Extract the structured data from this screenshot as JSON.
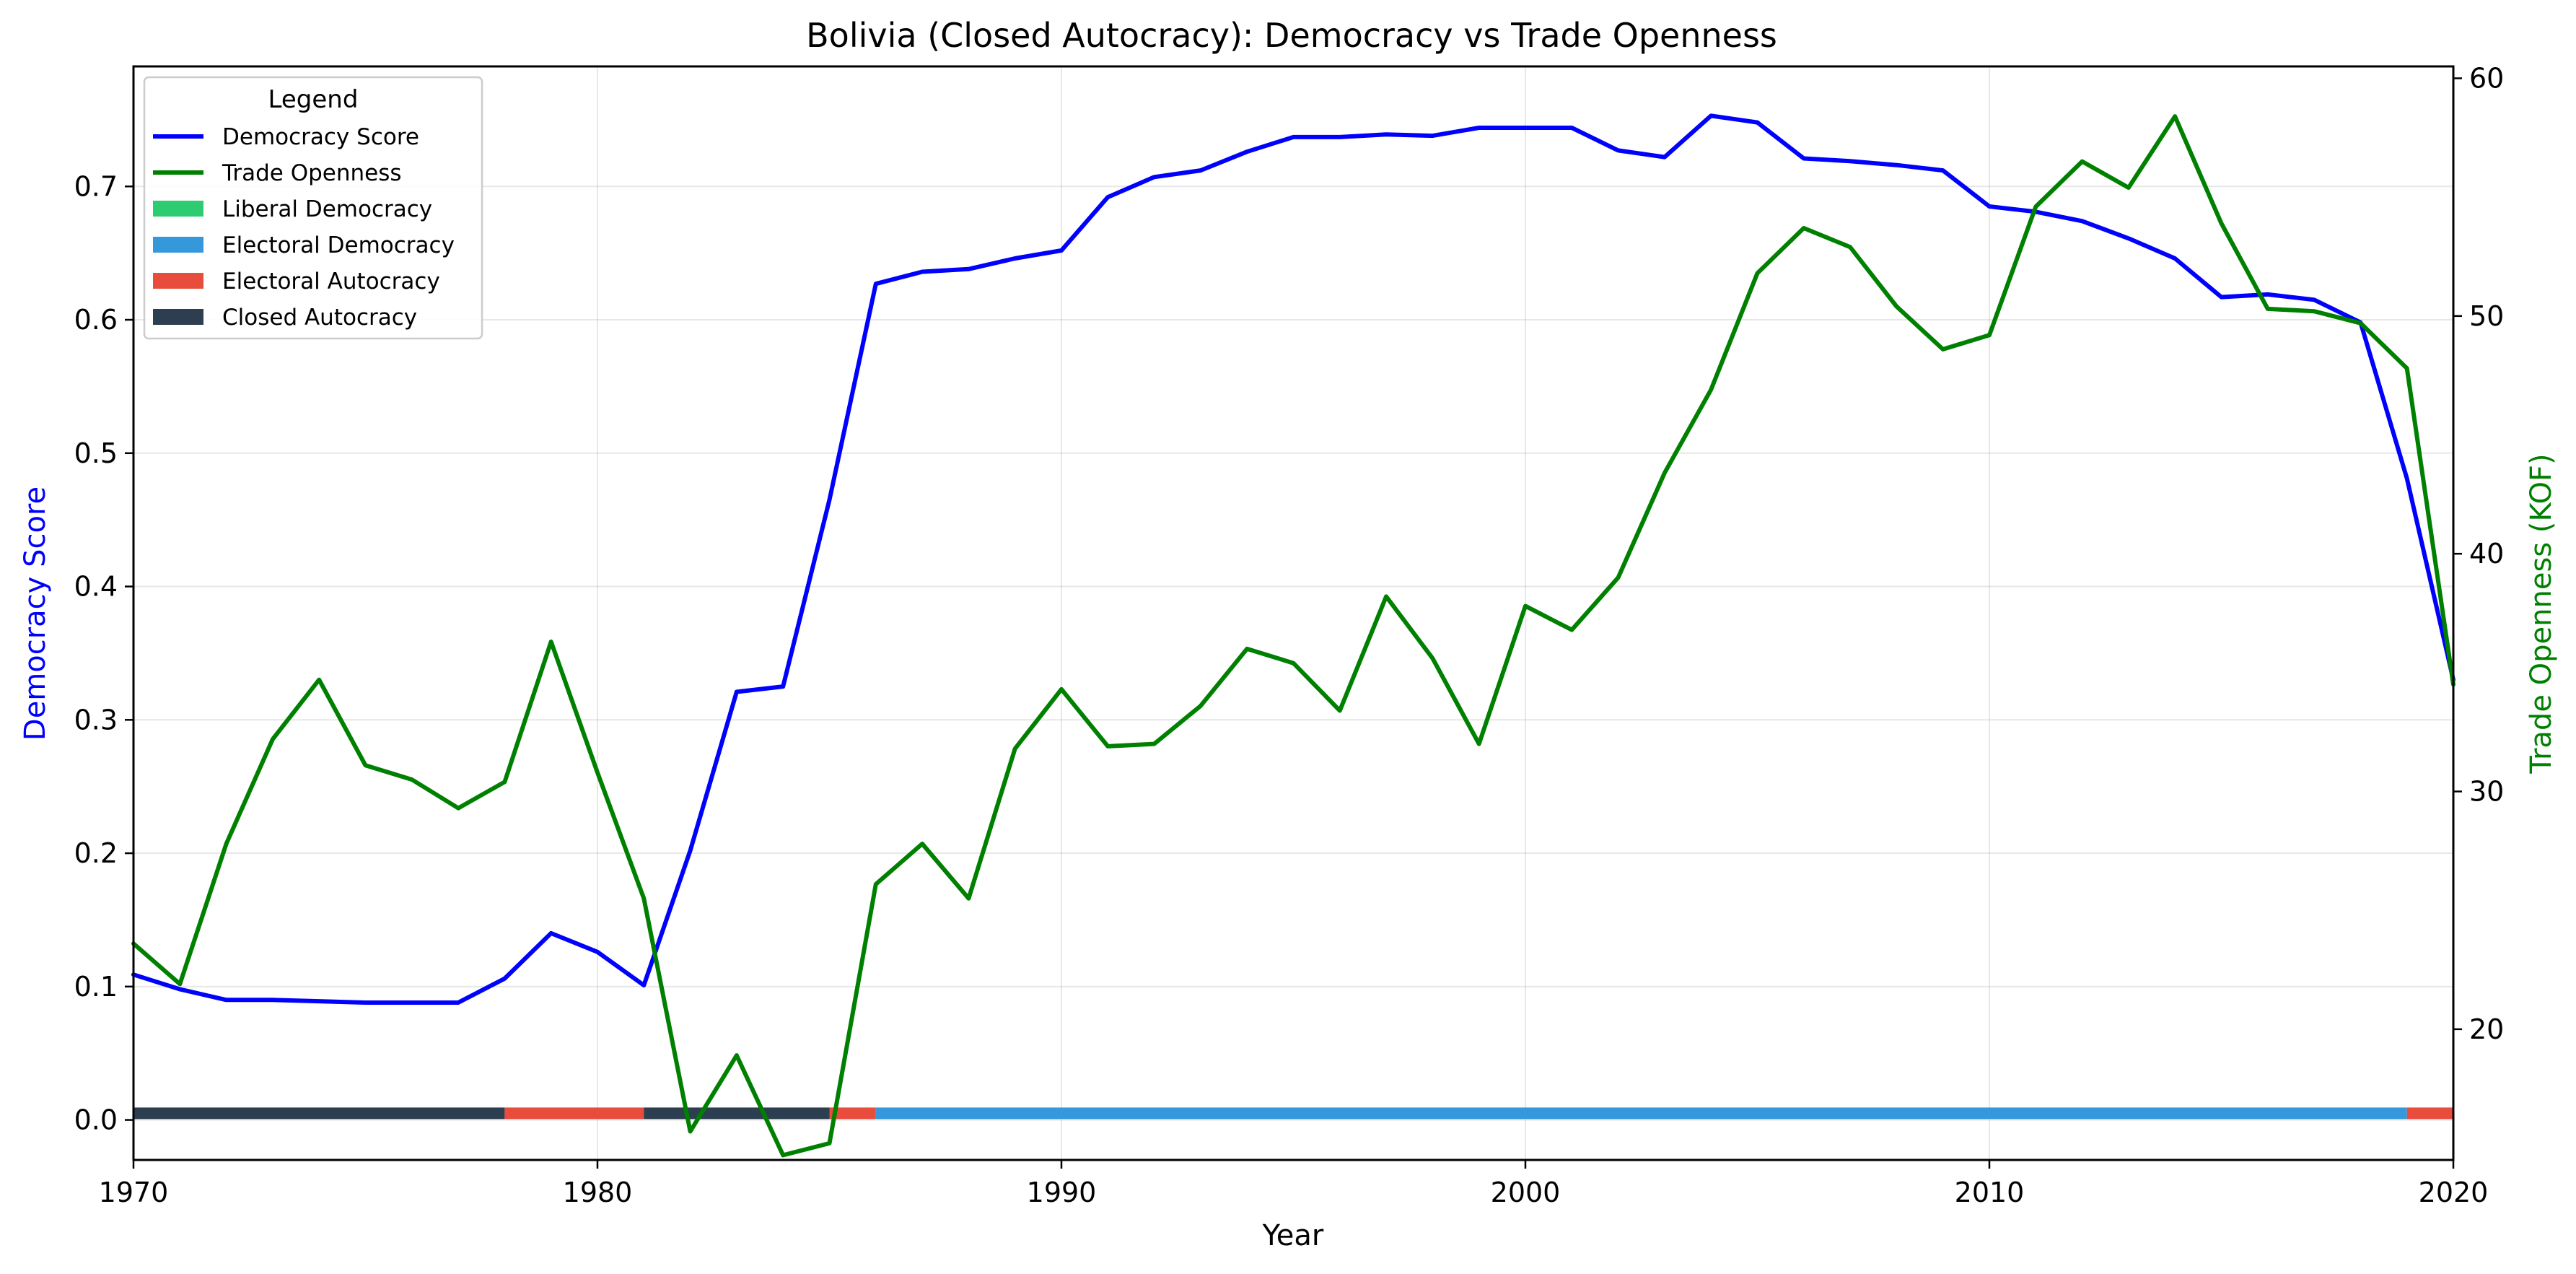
{
  "chart_data": {
    "type": "line",
    "title": "Bolivia (Closed Autocracy): Democracy vs Trade Openness",
    "xlabel": "Year",
    "ylabel_left": "Democracy Score",
    "ylabel_right": "Trade Openness (KOF)",
    "xlim": [
      1970,
      2020
    ],
    "ylim_left": [
      -0.03,
      0.79
    ],
    "ylim_right": [
      14.5,
      60.5
    ],
    "x_ticks": [
      "1970",
      "1980",
      "1990",
      "2000",
      "2010",
      "2020"
    ],
    "y_left_ticks": [
      "0.0",
      "0.1",
      "0.2",
      "0.3",
      "0.4",
      "0.5",
      "0.6",
      "0.7"
    ],
    "y_right_ticks": [
      "20",
      "30",
      "40",
      "50",
      "60"
    ],
    "grid": true,
    "legend": {
      "title": "Legend",
      "placement": "top-left",
      "entries": [
        {
          "label": "Democracy Score",
          "kind": "line",
          "color": "#0000ff"
        },
        {
          "label": "Trade Openness",
          "kind": "line",
          "color": "#008000"
        },
        {
          "label": "Liberal Democracy",
          "kind": "patch",
          "color": "#2ecc71"
        },
        {
          "label": "Electoral Democracy",
          "kind": "patch",
          "color": "#3498db"
        },
        {
          "label": "Electoral Autocracy",
          "kind": "patch",
          "color": "#e74c3c"
        },
        {
          "label": "Closed Autocracy",
          "kind": "patch",
          "color": "#2c3e50"
        }
      ]
    },
    "x": [
      1970,
      1971,
      1972,
      1973,
      1974,
      1975,
      1976,
      1977,
      1978,
      1979,
      1980,
      1981,
      1982,
      1983,
      1984,
      1985,
      1986,
      1987,
      1988,
      1989,
      1990,
      1991,
      1992,
      1993,
      1994,
      1995,
      1996,
      1997,
      1998,
      1999,
      2000,
      2001,
      2002,
      2003,
      2004,
      2005,
      2006,
      2007,
      2008,
      2009,
      2010,
      2011,
      2012,
      2013,
      2014,
      2015,
      2016,
      2017,
      2018,
      2019,
      2020
    ],
    "series": [
      {
        "name": "Democracy Score",
        "axis": "left",
        "color": "#0000ff",
        "values": [
          0.109,
          0.098,
          0.09,
          0.09,
          0.089,
          0.088,
          0.088,
          0.088,
          0.106,
          0.14,
          0.126,
          0.101,
          0.202,
          0.321,
          0.325,
          0.465,
          0.627,
          0.636,
          0.638,
          0.646,
          0.652,
          0.692,
          0.707,
          0.712,
          0.726,
          0.737,
          0.737,
          0.739,
          0.738,
          0.744,
          0.744,
          0.744,
          0.727,
          0.722,
          0.753,
          0.748,
          0.721,
          0.719,
          0.716,
          0.712,
          0.685,
          0.681,
          0.674,
          0.661,
          0.646,
          0.617,
          0.619,
          0.615,
          0.598,
          0.481,
          0.33
        ]
      },
      {
        "name": "Trade Openness",
        "axis": "right",
        "color": "#008000",
        "values": [
          23.6,
          21.9,
          27.8,
          32.2,
          34.7,
          31.1,
          30.5,
          29.3,
          30.4,
          36.3,
          30.8,
          25.5,
          15.7,
          18.9,
          14.7,
          15.2,
          26.1,
          27.8,
          25.5,
          31.8,
          34.3,
          31.9,
          32.0,
          33.6,
          36.0,
          35.4,
          33.4,
          38.2,
          35.6,
          32.0,
          37.8,
          36.8,
          39.0,
          43.4,
          46.9,
          51.8,
          53.7,
          52.9,
          50.4,
          48.6,
          49.2,
          54.6,
          56.5,
          55.4,
          58.4,
          53.9,
          50.3,
          50.2,
          49.7,
          47.8,
          34.5
        ]
      }
    ],
    "regime_bar": [
      {
        "start": 1970,
        "end": 1978,
        "regime": "Closed Autocracy",
        "color": "#2c3e50"
      },
      {
        "start": 1978,
        "end": 1981,
        "regime": "Electoral Autocracy",
        "color": "#e74c3c"
      },
      {
        "start": 1981,
        "end": 1985,
        "regime": "Closed Autocracy",
        "color": "#2c3e50"
      },
      {
        "start": 1985,
        "end": 1986,
        "regime": "Electoral Autocracy",
        "color": "#e74c3c"
      },
      {
        "start": 1986,
        "end": 2019,
        "regime": "Electoral Democracy",
        "color": "#3498db"
      },
      {
        "start": 2019,
        "end": 2020,
        "regime": "Electoral Autocracy",
        "color": "#e74c3c"
      }
    ]
  }
}
